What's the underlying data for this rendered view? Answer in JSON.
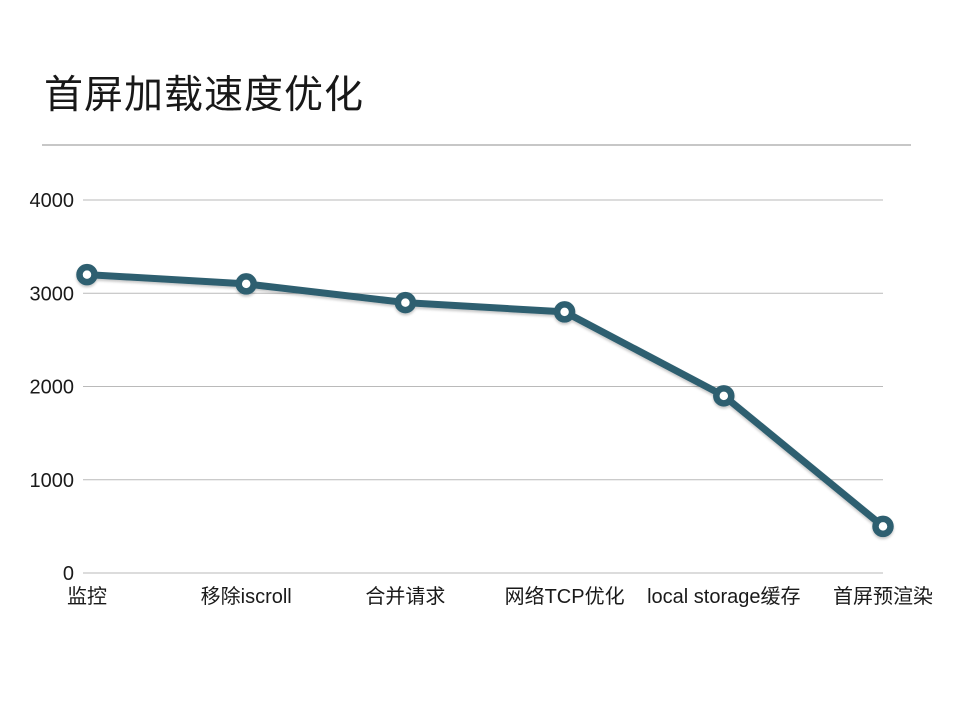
{
  "slide": {
    "title": "首屏加载速度优化"
  },
  "chart_data": {
    "type": "line",
    "title": "首屏加载速度优化",
    "categories": [
      "监控",
      "移除iscroll",
      "合并请求",
      "网络TCP优化",
      "local storage缓存",
      "首屏预渲染"
    ],
    "values": [
      3200,
      3100,
      2900,
      2800,
      1900,
      500
    ],
    "xlabel": "",
    "ylabel": "",
    "ylim": [
      0,
      4000
    ],
    "yticks": [
      0,
      1000,
      2000,
      3000,
      4000
    ],
    "grid": true,
    "legend": false,
    "line_color": "#2e5f70",
    "marker": "open-circle",
    "gridline_color": "#bababa",
    "axis_label_color": "#1a1a1a"
  }
}
